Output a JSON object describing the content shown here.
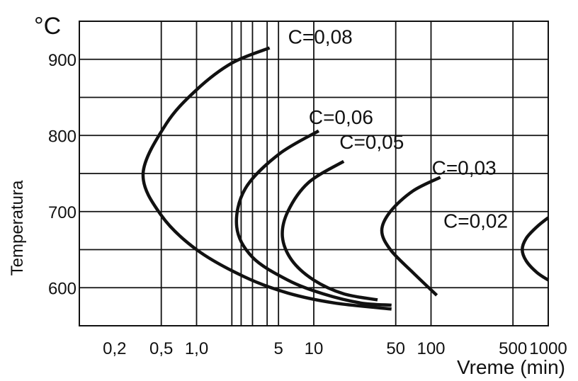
{
  "chart_data": {
    "type": "line",
    "title": "",
    "xlabel": "Vreme (min)",
    "ylabel": "Temperatura",
    "yunit": "°C",
    "x_scale": "log",
    "xlim": [
      0.1,
      1000
    ],
    "ylim": [
      550,
      950
    ],
    "grid": true,
    "x_tick_labels": [
      {
        "value": 0.2,
        "label": "0,2"
      },
      {
        "value": 0.5,
        "label": "0,5"
      },
      {
        "value": 1,
        "label": "1,0"
      },
      {
        "value": 5,
        "label": "5"
      },
      {
        "value": 10,
        "label": "10"
      },
      {
        "value": 50,
        "label": "50"
      },
      {
        "value": 100,
        "label": "100"
      },
      {
        "value": 500,
        "label": "500"
      },
      {
        "value": 1000,
        "label": "1000"
      }
    ],
    "x_gridlines": [
      0.5,
      1,
      2,
      2.4,
      3,
      4,
      5,
      10,
      50,
      100,
      500
    ],
    "y_tick_labels": [
      {
        "value": 600,
        "label": "600"
      },
      {
        "value": 700,
        "label": "700"
      },
      {
        "value": 800,
        "label": "800"
      },
      {
        "value": 900,
        "label": "900"
      }
    ],
    "y_gridlines": [
      600,
      650,
      700,
      750,
      800,
      850,
      900
    ],
    "series": [
      {
        "name": "C=0,08",
        "points": [
          [
            4.2,
            915
          ],
          [
            2.0,
            895
          ],
          [
            1.0,
            860
          ],
          [
            0.55,
            815
          ],
          [
            0.35,
            750
          ],
          [
            0.5,
            695
          ],
          [
            1.0,
            650
          ],
          [
            2.5,
            615
          ],
          [
            6,
            593
          ],
          [
            15,
            580
          ],
          [
            46,
            572
          ]
        ]
      },
      {
        "name": "C=0,06",
        "points": [
          [
            11,
            806
          ],
          [
            5,
            775
          ],
          [
            2.6,
            730
          ],
          [
            2.2,
            680
          ],
          [
            3,
            640
          ],
          [
            6,
            610
          ],
          [
            12,
            592
          ],
          [
            25,
            580
          ],
          [
            46,
            577
          ]
        ]
      },
      {
        "name": "C=0,05",
        "points": [
          [
            18,
            766
          ],
          [
            9,
            738
          ],
          [
            6,
            700
          ],
          [
            5.4,
            667
          ],
          [
            6.5,
            636
          ],
          [
            10,
            610
          ],
          [
            18,
            592
          ],
          [
            35,
            584
          ]
        ]
      },
      {
        "name": "C=0,03",
        "points": [
          [
            120,
            745
          ],
          [
            70,
            727
          ],
          [
            45,
            700
          ],
          [
            38,
            675
          ],
          [
            45,
            650
          ],
          [
            70,
            620
          ],
          [
            112,
            590
          ]
        ]
      },
      {
        "name": "C=0,02",
        "points": [
          [
            1000,
            692
          ],
          [
            800,
            680
          ],
          [
            650,
            665
          ],
          [
            600,
            650
          ],
          [
            650,
            635
          ],
          [
            800,
            620
          ],
          [
            1000,
            610
          ]
        ]
      }
    ]
  }
}
